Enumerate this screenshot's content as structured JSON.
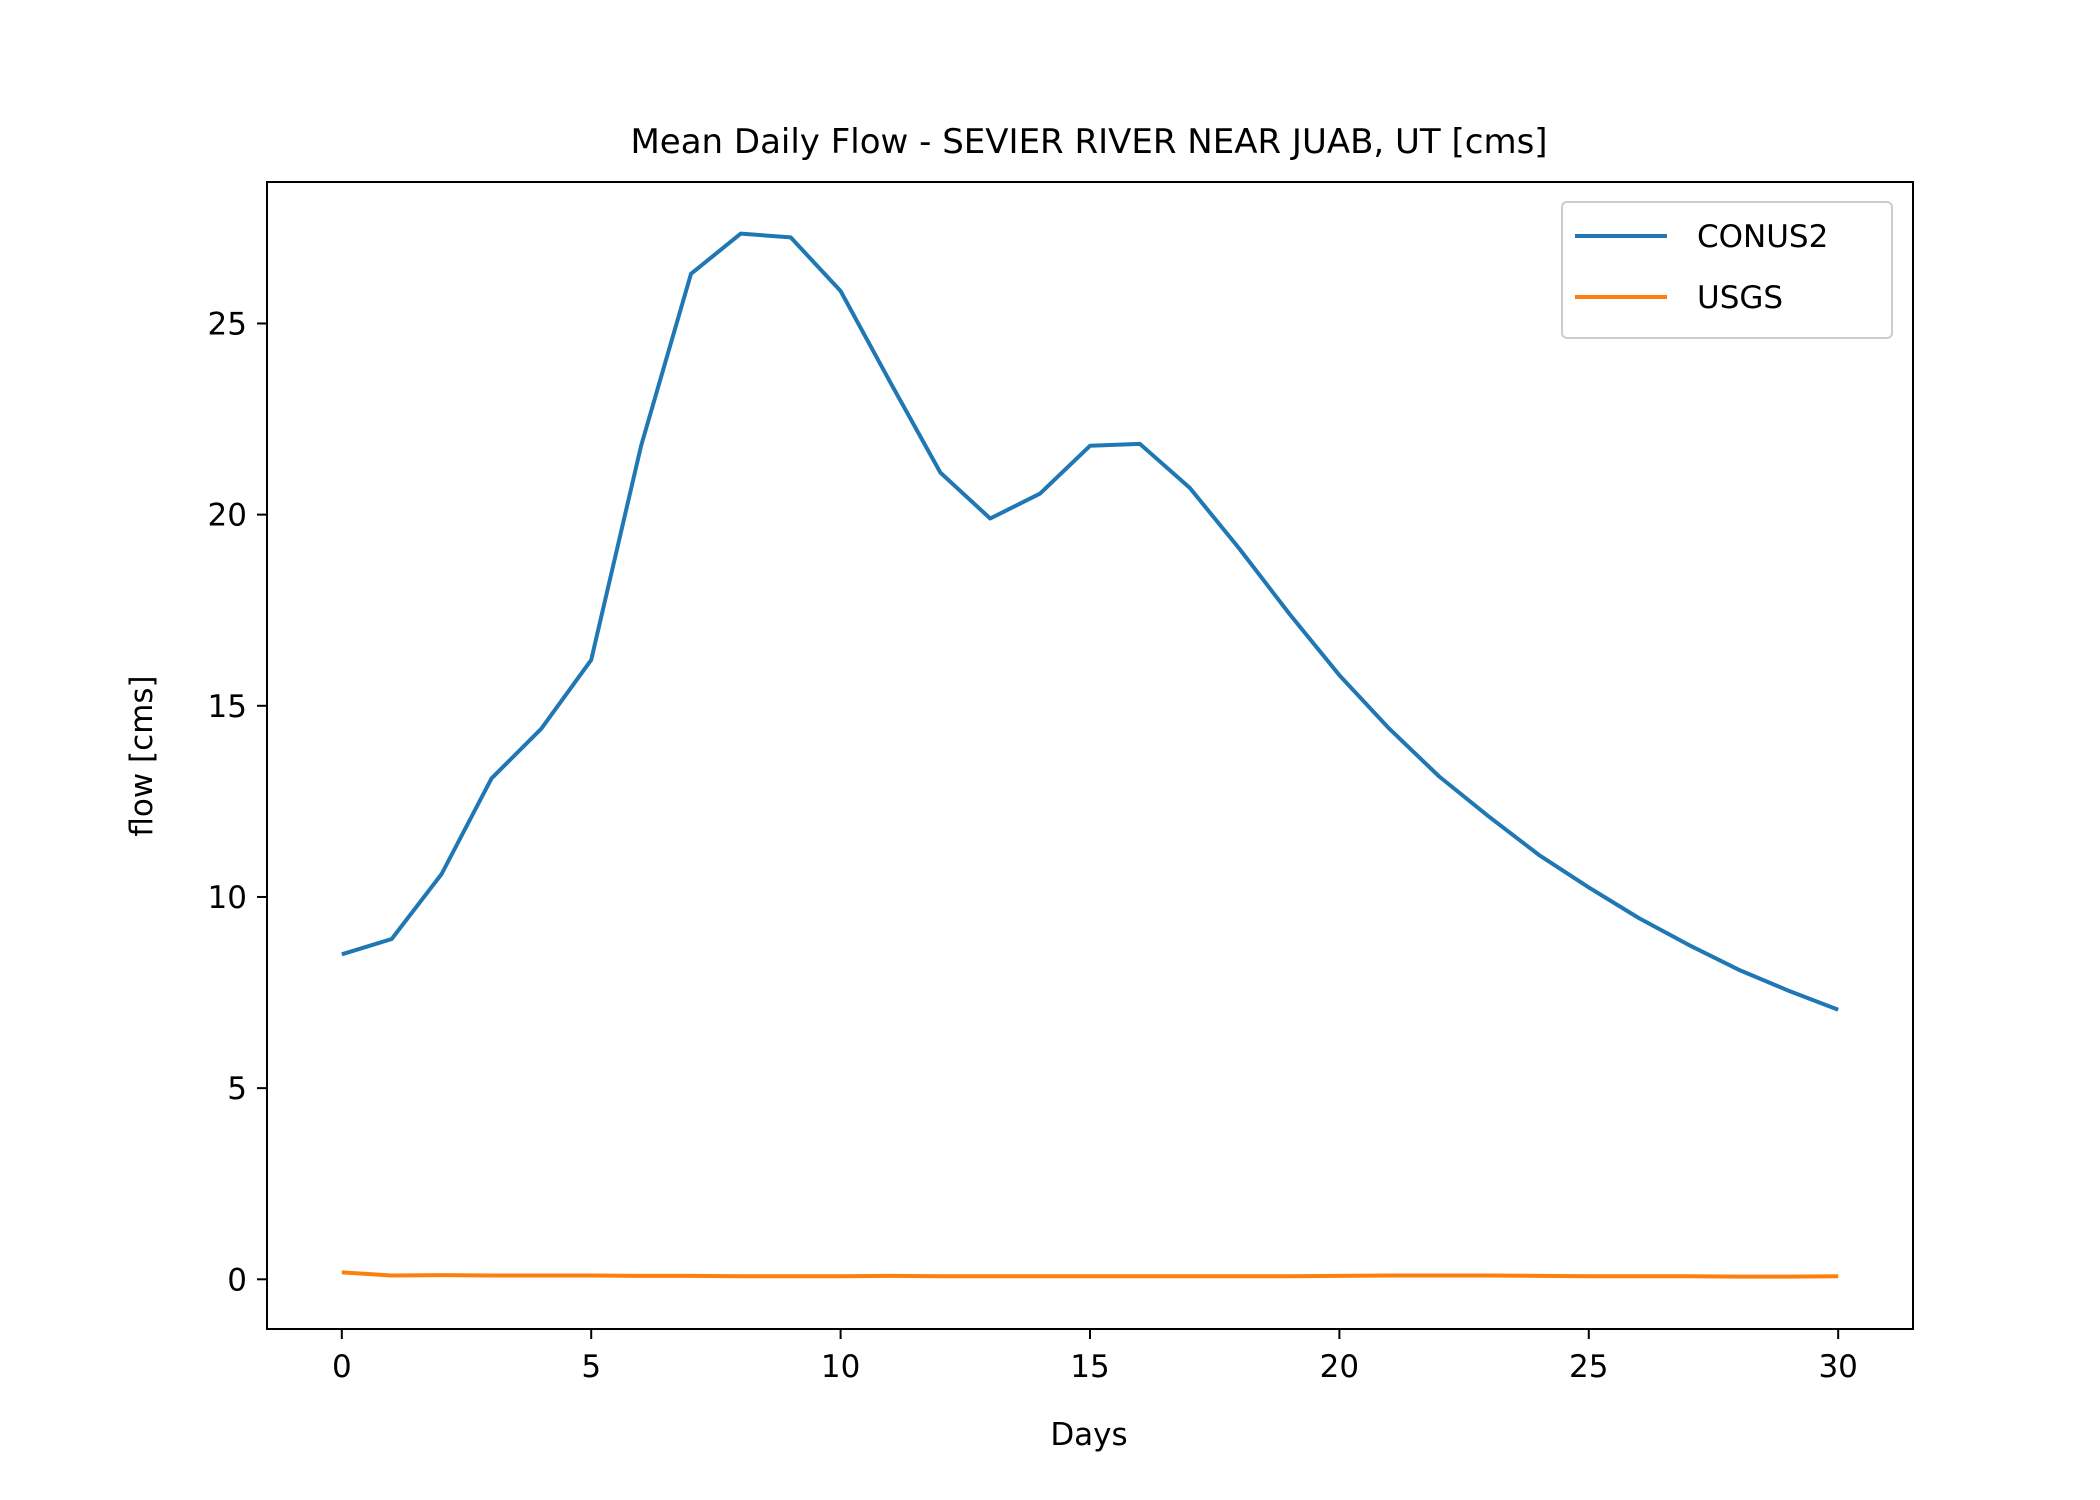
{
  "chart_data": {
    "type": "line",
    "title": "Mean Daily Flow - SEVIER RIVER NEAR JUAB, UT [cms]",
    "xlabel": "Days",
    "ylabel": "flow [cms]",
    "xlim": [
      -1.5,
      31.5
    ],
    "ylim": [
      -1.3,
      28.7
    ],
    "xticks": [
      0,
      5,
      10,
      15,
      20,
      25,
      30
    ],
    "yticks": [
      0,
      5,
      10,
      15,
      20,
      25
    ],
    "legend": "top-right",
    "grid": false,
    "x": [
      0,
      1,
      2,
      3,
      4,
      5,
      6,
      7,
      8,
      9,
      10,
      11,
      12,
      13,
      14,
      15,
      16,
      17,
      18,
      19,
      20,
      21,
      22,
      23,
      24,
      25,
      26,
      27,
      28,
      29,
      30
    ],
    "series": [
      {
        "name": "CONUS2",
        "color": "#1f77b4",
        "values": [
          8.5,
          8.9,
          10.6,
          13.1,
          14.4,
          16.2,
          21.8,
          26.3,
          27.35,
          27.25,
          25.85,
          23.45,
          21.1,
          19.9,
          20.55,
          21.8,
          21.85,
          20.7,
          19.1,
          17.4,
          15.8,
          14.4,
          13.15,
          12.1,
          11.1,
          10.25,
          9.45,
          8.75,
          8.1,
          7.55,
          7.05
        ]
      },
      {
        "name": "USGS",
        "color": "#ff7f0e",
        "values": [
          0.18,
          0.1,
          0.11,
          0.1,
          0.1,
          0.1,
          0.09,
          0.09,
          0.08,
          0.08,
          0.08,
          0.09,
          0.08,
          0.08,
          0.08,
          0.08,
          0.08,
          0.08,
          0.08,
          0.08,
          0.09,
          0.1,
          0.1,
          0.1,
          0.09,
          0.08,
          0.08,
          0.08,
          0.07,
          0.07,
          0.08
        ]
      }
    ]
  }
}
